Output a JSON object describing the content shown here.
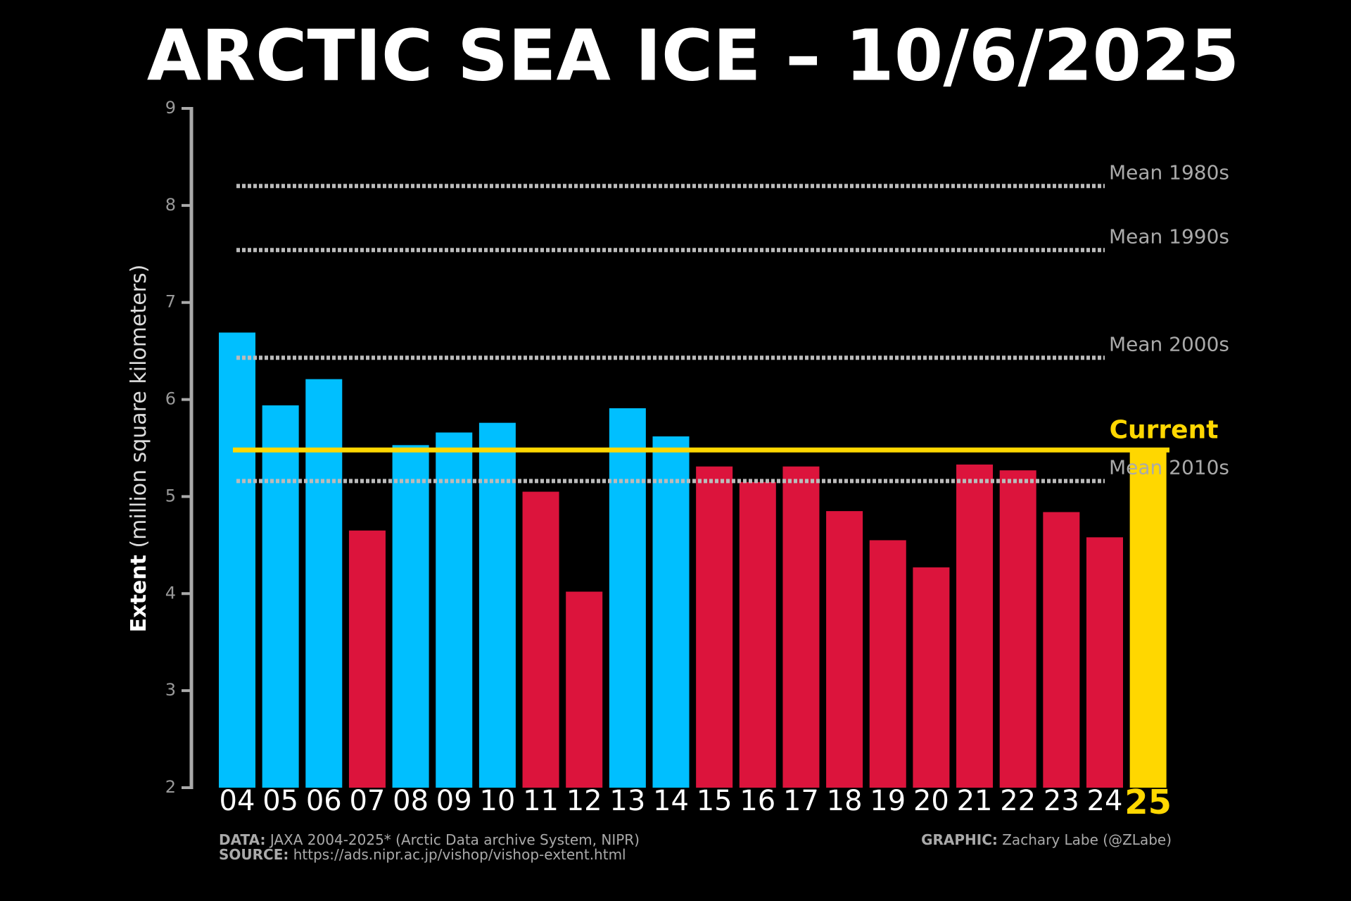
{
  "chart_data": {
    "type": "bar",
    "title": "ARCTIC SEA ICE – 10/6/2025",
    "y_label_bold": "Extent",
    "y_label": "(million square kilometers)",
    "categories": [
      "04",
      "05",
      "06",
      "07",
      "08",
      "09",
      "10",
      "11",
      "12",
      "13",
      "14",
      "15",
      "16",
      "17",
      "18",
      "19",
      "20",
      "21",
      "22",
      "23",
      "24",
      "25"
    ],
    "values": [
      6.69,
      5.94,
      6.21,
      4.65,
      5.53,
      5.66,
      5.76,
      5.05,
      4.02,
      5.91,
      5.62,
      5.31,
      5.15,
      5.31,
      4.85,
      4.55,
      4.27,
      5.33,
      5.27,
      4.84,
      4.58,
      5.48
    ],
    "colors": [
      "#00bfff",
      "#00bfff",
      "#00bfff",
      "#dc143c",
      "#00bfff",
      "#00bfff",
      "#00bfff",
      "#dc143c",
      "#dc143c",
      "#00bfff",
      "#00bfff",
      "#dc143c",
      "#dc143c",
      "#dc143c",
      "#dc143c",
      "#dc143c",
      "#dc143c",
      "#dc143c",
      "#dc143c",
      "#dc143c",
      "#dc143c",
      "#ffd700"
    ],
    "ylim": [
      2,
      9
    ],
    "yticks": [
      2,
      3,
      4,
      5,
      6,
      7,
      8,
      9
    ],
    "reference_lines": [
      {
        "label": "Mean 1980s",
        "value": 8.2
      },
      {
        "label": "Mean 1990s",
        "value": 7.54
      },
      {
        "label": "Mean 2000s",
        "value": 6.43
      },
      {
        "label": "Mean 2010s",
        "value": 5.16
      }
    ],
    "current_line": {
      "label": "Current",
      "value": 5.48,
      "color": "#ffd700"
    },
    "footer": {
      "data_key": "DATA:",
      "data_text": "JAXA 2004-2025* (Arctic Data archive System, NIPR)",
      "source_key": "SOURCE:",
      "source_text": "https://ads.nipr.ac.jp/vishop/vishop-extent.html",
      "graphic_key": "GRAPHIC:",
      "graphic_text": "Zachary Labe (@ZLabe)"
    }
  }
}
